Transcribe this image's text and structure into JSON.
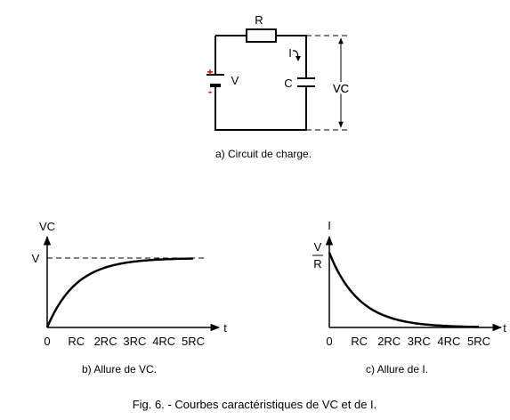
{
  "circuit": {
    "resistor_label": "R",
    "current_label": "I",
    "source_label": "V",
    "plus_sign": "+",
    "minus_sign": "-",
    "capacitor_label": "C",
    "voltage_label": "VC",
    "caption": "a)   Circuit de charge."
  },
  "graph_vc": {
    "y_axis_label": "VC",
    "x_axis_label": "t",
    "asymptote_label": "V",
    "ticks": [
      "0",
      "RC",
      "2RC",
      "3RC",
      "4RC",
      "5RC"
    ],
    "caption": "b)   Allure de VC."
  },
  "graph_i": {
    "y_axis_label": "I",
    "x_axis_label": "t",
    "start_numerator": "V",
    "start_denominator": "R",
    "ticks": [
      "0",
      "RC",
      "2RC",
      "3RC",
      "4RC",
      "5RC"
    ],
    "caption": "c)   Allure de I."
  },
  "figure_caption": "Fig. 6. - Courbes caractéristiques de VC et de I.",
  "colors": {
    "polarity": "#cc0000",
    "ink": "#000000"
  },
  "chart_data": [
    {
      "type": "line",
      "function": "V(1 - e^(-t/RC))",
      "x": [
        0,
        1,
        2,
        3,
        4,
        5
      ],
      "xlabels": [
        "0",
        "RC",
        "2RC",
        "3RC",
        "4RC",
        "5RC"
      ],
      "y": [
        0,
        0.632,
        0.865,
        0.95,
        0.982,
        0.993
      ],
      "ylabel": "VC",
      "xlabel": "t",
      "asymptote": 1,
      "asymptote_label": "V"
    },
    {
      "type": "line",
      "function": "(V/R) e^(-t/RC)",
      "x": [
        0,
        1,
        2,
        3,
        4,
        5
      ],
      "xlabels": [
        "0",
        "RC",
        "2RC",
        "3RC",
        "4RC",
        "5RC"
      ],
      "y": [
        1,
        0.368,
        0.135,
        0.05,
        0.018,
        0.007
      ],
      "ylabel": "I",
      "xlabel": "t",
      "start_label": "V/R"
    }
  ]
}
